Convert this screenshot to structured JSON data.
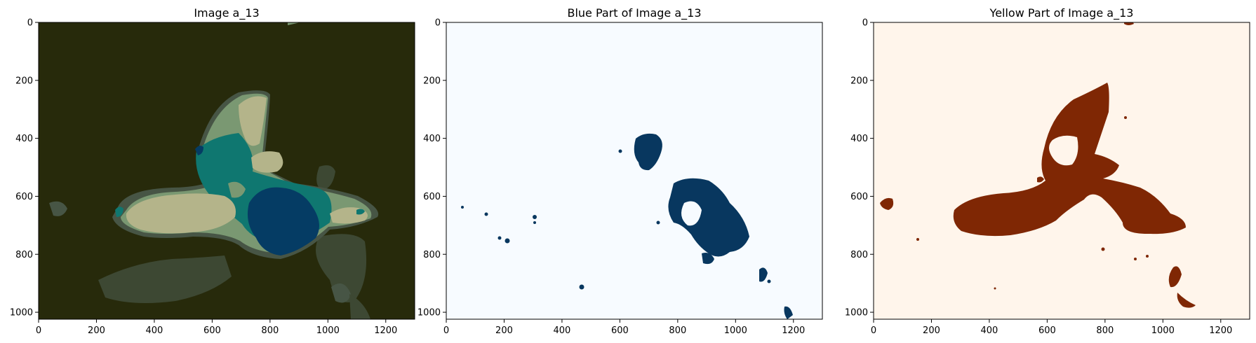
{
  "chart_data": [
    {
      "type": "heatmap",
      "title": "Image a_13",
      "xlim": [
        0,
        1300
      ],
      "ylim": [
        1024,
        0
      ],
      "xticks": [
        0,
        200,
        400,
        600,
        800,
        1000,
        1200
      ],
      "yticks": [
        0,
        200,
        400,
        600,
        800,
        1000
      ],
      "colormap": "cluster colors",
      "colors": {
        "background": "#272a0b",
        "dark_gray_green": "#3d4833",
        "dim_green": "#475545",
        "sage": "#7a9872",
        "khaki": "#b4b48a",
        "teal": "#0f7770",
        "navy": "#053c64"
      }
    },
    {
      "type": "heatmap",
      "title": "Blue Part of Image a_13",
      "xlim": [
        0,
        1300
      ],
      "ylim": [
        1024,
        0
      ],
      "xticks": [
        0,
        200,
        400,
        600,
        800,
        1000,
        1200
      ],
      "yticks": [
        0,
        200,
        400,
        600,
        800,
        1000
      ],
      "colormap": "Blues",
      "colors": {
        "background": "#f7fbff",
        "mask": "#08375f"
      }
    },
    {
      "type": "heatmap",
      "title": "Yellow Part of Image a_13",
      "xlim": [
        0,
        1300
      ],
      "ylim": [
        1024,
        0
      ],
      "xticks": [
        0,
        200,
        400,
        600,
        800,
        1000,
        1200
      ],
      "yticks": [
        0,
        200,
        400,
        600,
        800,
        1000
      ],
      "colormap": "Oranges",
      "colors": {
        "background": "#fff5eb",
        "mask": "#7f2704"
      }
    }
  ]
}
